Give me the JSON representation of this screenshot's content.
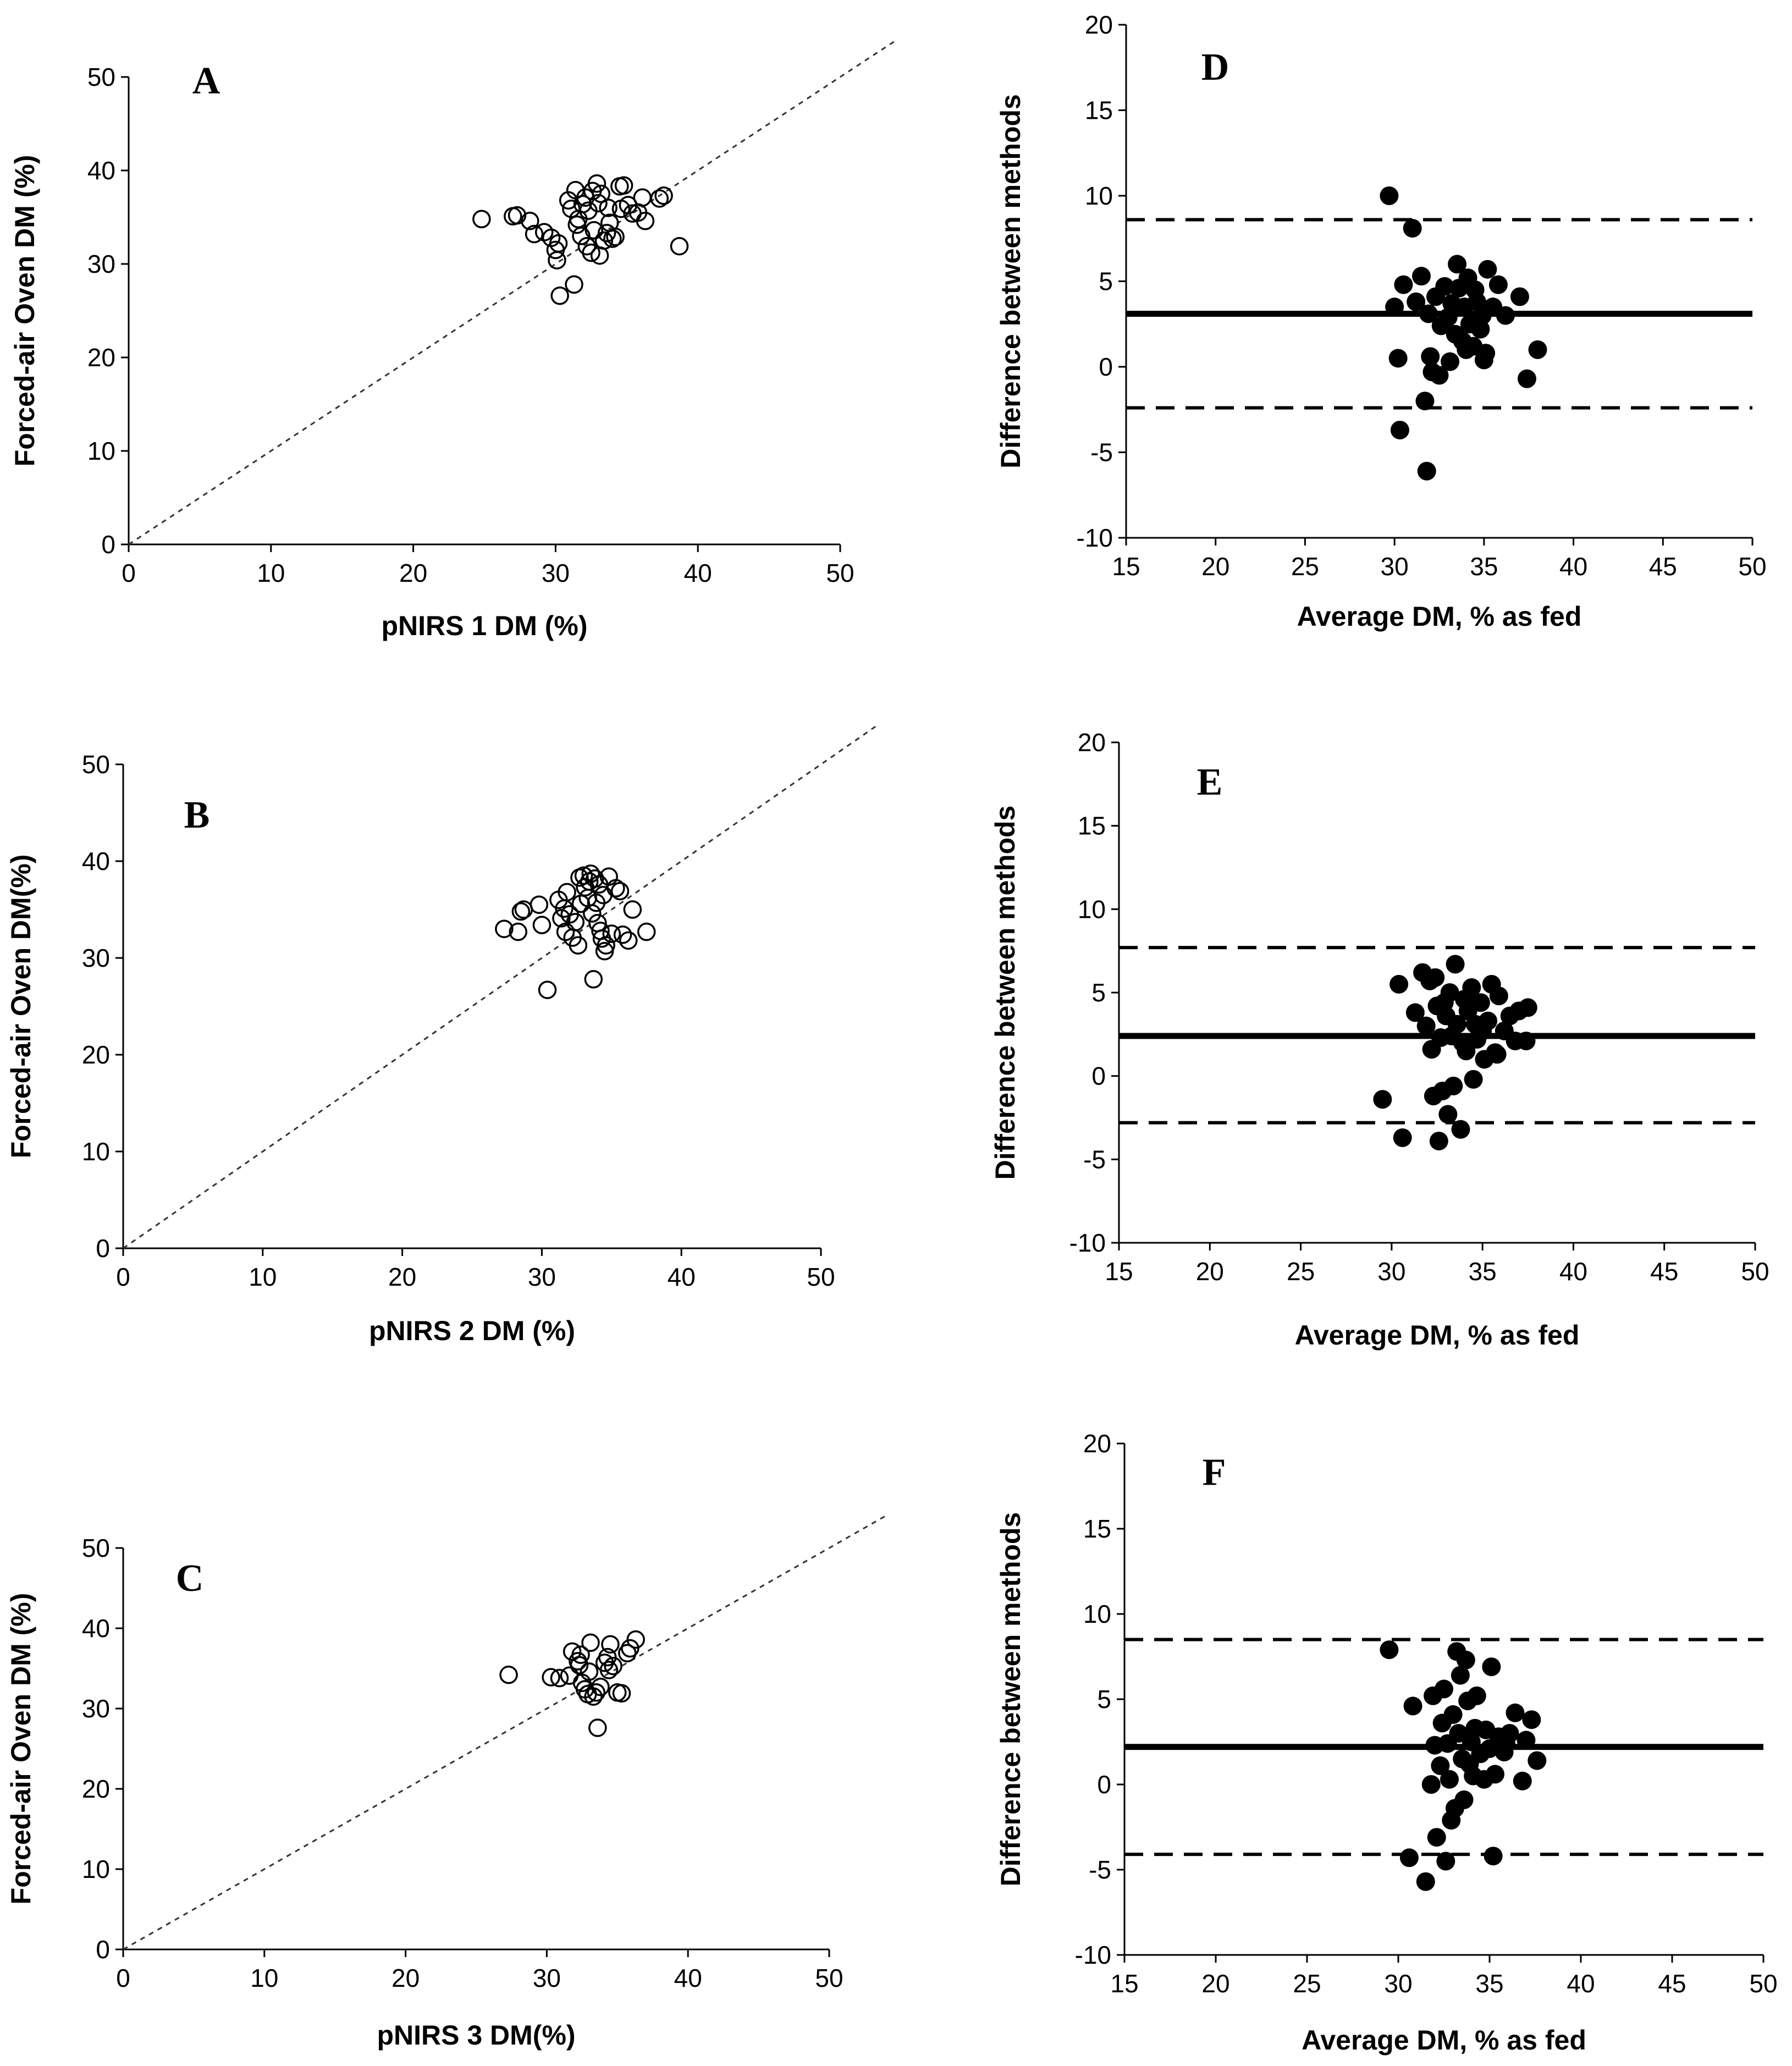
{
  "chart_data": [
    {
      "panel": "A",
      "type": "scatter",
      "xlabel": "pNIRS 1 DM (%)",
      "ylabel": "Forced-air Oven DM (%)",
      "xlim": [
        0,
        50
      ],
      "ylim": [
        0,
        50
      ],
      "xticks": [
        "0",
        "10",
        "20",
        "30",
        "40",
        "50"
      ],
      "yticks": [
        "0",
        "10",
        "20",
        "30",
        "40",
        "50"
      ],
      "reference_line": "y = x",
      "points": [
        [
          24.8,
          34.8
        ],
        [
          27,
          35.1
        ],
        [
          27.3,
          35.2
        ],
        [
          28.2,
          34.6
        ],
        [
          28.5,
          33.2
        ],
        [
          29.2,
          33.4
        ],
        [
          29.7,
          32.8
        ],
        [
          30.0,
          31.5
        ],
        [
          30.2,
          32.2
        ],
        [
          30.1,
          30.4
        ],
        [
          30.3,
          26.6
        ],
        [
          30.9,
          36.8
        ],
        [
          31.1,
          35.9
        ],
        [
          31.4,
          37.9
        ],
        [
          31.6,
          34.8
        ],
        [
          31.8,
          33.0
        ],
        [
          31.9,
          36.4
        ],
        [
          32.1,
          37.1
        ],
        [
          32.3,
          35.7
        ],
        [
          32.2,
          31.9
        ],
        [
          32.5,
          31.2
        ],
        [
          32.7,
          33.6
        ],
        [
          32.9,
          38.6
        ],
        [
          33.0,
          36.5
        ],
        [
          33.1,
          30.9
        ],
        [
          33.2,
          37.5
        ],
        [
          33.4,
          32.5
        ],
        [
          33.6,
          33.3
        ],
        [
          33.8,
          34.4
        ],
        [
          34.0,
          32.7
        ],
        [
          34.2,
          32.9
        ],
        [
          34.5,
          38.3
        ],
        [
          34.8,
          38.4
        ],
        [
          35.1,
          36.3
        ],
        [
          35.4,
          35.4
        ],
        [
          35.8,
          35.5
        ],
        [
          36.1,
          37.1
        ],
        [
          36.3,
          34.6
        ],
        [
          37.3,
          37.0
        ],
        [
          37.6,
          37.3
        ],
        [
          38.7,
          31.9
        ],
        [
          31.3,
          27.8
        ],
        [
          32.6,
          37.8
        ],
        [
          33.7,
          36.0
        ],
        [
          34.6,
          35.9
        ],
        [
          31.5,
          34.2
        ]
      ]
    },
    {
      "panel": "B",
      "type": "scatter",
      "xlabel": "pNIRS 2 DM (%)",
      "ylabel": "Forced-air Oven DM(%)",
      "xlim": [
        0,
        50
      ],
      "ylim": [
        0,
        50
      ],
      "xticks": [
        "0",
        "10",
        "20",
        "30",
        "40",
        "50"
      ],
      "yticks": [
        "0",
        "10",
        "20",
        "30",
        "40",
        "50"
      ],
      "reference_line": "y = x",
      "points": [
        [
          27.3,
          33.0
        ],
        [
          28.3,
          32.7
        ],
        [
          28.5,
          34.8
        ],
        [
          28.7,
          35.0
        ],
        [
          29.8,
          35.5
        ],
        [
          30.0,
          33.4
        ],
        [
          30.4,
          26.7
        ],
        [
          31.2,
          36.0
        ],
        [
          31.4,
          34.1
        ],
        [
          31.6,
          35.1
        ],
        [
          31.7,
          32.7
        ],
        [
          32.0,
          34.5
        ],
        [
          32.2,
          32.1
        ],
        [
          32.4,
          33.7
        ],
        [
          32.6,
          31.3
        ],
        [
          32.8,
          35.6
        ],
        [
          33.0,
          38.5
        ],
        [
          33.1,
          37.3
        ],
        [
          33.3,
          36.2
        ],
        [
          33.5,
          38.7
        ],
        [
          33.6,
          34.6
        ],
        [
          33.7,
          27.8
        ],
        [
          33.8,
          38.2
        ],
        [
          34.0,
          33.6
        ],
        [
          34.1,
          37.6
        ],
        [
          34.2,
          32.8
        ],
        [
          34.4,
          36.5
        ],
        [
          34.5,
          30.7
        ],
        [
          34.6,
          31.3
        ],
        [
          34.8,
          38.4
        ],
        [
          35.0,
          32.5
        ],
        [
          35.3,
          37.2
        ],
        [
          35.6,
          36.9
        ],
        [
          35.8,
          32.4
        ],
        [
          36.2,
          31.8
        ],
        [
          36.5,
          35.0
        ],
        [
          37.5,
          32.7
        ],
        [
          32.7,
          38.3
        ],
        [
          33.4,
          37.9
        ],
        [
          34.3,
          32.0
        ],
        [
          31.8,
          36.8
        ],
        [
          33.9,
          35.7
        ]
      ]
    },
    {
      "panel": "C",
      "type": "scatter",
      "xlabel": "pNIRS 3 DM(%)",
      "ylabel": "Forced-air Oven DM (%)",
      "xlim": [
        0,
        50
      ],
      "ylim": [
        0,
        50
      ],
      "xticks": [
        "0",
        "10",
        "20",
        "30",
        "40",
        "50"
      ],
      "yticks": [
        "0",
        "10",
        "20",
        "30",
        "40",
        "50"
      ],
      "reference_line": "y = x",
      "points": [
        [
          27.3,
          34.2
        ],
        [
          30.3,
          33.9
        ],
        [
          30.9,
          33.8
        ],
        [
          31.6,
          34.1
        ],
        [
          31.8,
          37.1
        ],
        [
          32.2,
          35.9
        ],
        [
          32.3,
          35.4
        ],
        [
          32.4,
          36.7
        ],
        [
          32.7,
          32.4
        ],
        [
          32.9,
          31.8
        ],
        [
          33.0,
          34.6
        ],
        [
          33.1,
          38.2
        ],
        [
          33.3,
          31.5
        ],
        [
          33.5,
          32.0
        ],
        [
          33.6,
          27.6
        ],
        [
          33.8,
          32.7
        ],
        [
          34.1,
          35.7
        ],
        [
          34.3,
          36.4
        ],
        [
          34.5,
          38.0
        ],
        [
          34.7,
          35.3
        ],
        [
          35.0,
          32.0
        ],
        [
          35.3,
          31.9
        ],
        [
          35.7,
          36.9
        ],
        [
          35.9,
          37.5
        ],
        [
          36.3,
          38.6
        ],
        [
          34.4,
          34.8
        ],
        [
          32.5,
          33.2
        ]
      ]
    },
    {
      "panel": "D",
      "type": "scatter",
      "xlabel": "Average DM, % as fed",
      "ylabel": "Difference between methods",
      "xlim": [
        15,
        50
      ],
      "ylim": [
        -10,
        20
      ],
      "xticks": [
        "15",
        "20",
        "25",
        "30",
        "35",
        "40",
        "45",
        "50"
      ],
      "yticks": [
        "-10",
        "-5",
        "0",
        "5",
        "10",
        "15",
        "20"
      ],
      "mean_difference": 3.1,
      "limits_of_agreement": [
        -2.4,
        8.6
      ],
      "points": [
        [
          29.7,
          10.0
        ],
        [
          30.0,
          3.5
        ],
        [
          30.2,
          0.5
        ],
        [
          30.3,
          -3.7
        ],
        [
          30.5,
          4.8
        ],
        [
          31.0,
          8.1
        ],
        [
          31.2,
          3.8
        ],
        [
          31.5,
          5.3
        ],
        [
          31.7,
          -2.0
        ],
        [
          31.8,
          -6.1
        ],
        [
          31.9,
          3.1
        ],
        [
          32.0,
          0.6
        ],
        [
          32.1,
          -0.3
        ],
        [
          32.3,
          4.1
        ],
        [
          32.5,
          -0.5
        ],
        [
          32.6,
          2.4
        ],
        [
          32.8,
          4.7
        ],
        [
          33.0,
          2.9
        ],
        [
          33.1,
          0.3
        ],
        [
          33.2,
          3.7
        ],
        [
          33.4,
          1.9
        ],
        [
          33.5,
          6.0
        ],
        [
          33.6,
          4.6
        ],
        [
          33.8,
          1.5
        ],
        [
          33.9,
          3.5
        ],
        [
          34.1,
          5.2
        ],
        [
          34.2,
          2.5
        ],
        [
          34.4,
          1.2
        ],
        [
          34.5,
          4.5
        ],
        [
          34.6,
          3.8
        ],
        [
          34.8,
          2.2
        ],
        [
          35.0,
          0.4
        ],
        [
          35.2,
          5.7
        ],
        [
          35.5,
          3.5
        ],
        [
          35.8,
          4.8
        ],
        [
          36.2,
          3.0
        ],
        [
          37.0,
          4.1
        ],
        [
          37.4,
          -0.7
        ],
        [
          38.0,
          1.0
        ],
        [
          35.1,
          0.8
        ],
        [
          34.0,
          1.0
        ],
        [
          34.9,
          3.0
        ]
      ]
    },
    {
      "panel": "E",
      "type": "scatter",
      "xlabel": "Average DM, % as fed",
      "ylabel": "Difference between methods",
      "xlim": [
        15,
        50
      ],
      "ylim": [
        -10,
        20
      ],
      "xticks": [
        "15",
        "20",
        "25",
        "30",
        "35",
        "40",
        "45",
        "50"
      ],
      "yticks": [
        "-10",
        "-5",
        "0",
        "5",
        "10",
        "15",
        "20"
      ],
      "mean_difference": 2.4,
      "limits_of_agreement": [
        -2.8,
        7.7
      ],
      "points": [
        [
          29.5,
          -1.4
        ],
        [
          30.4,
          5.5
        ],
        [
          30.6,
          -3.7
        ],
        [
          31.3,
          3.8
        ],
        [
          31.7,
          6.2
        ],
        [
          31.9,
          3.0
        ],
        [
          32.1,
          5.7
        ],
        [
          32.2,
          1.6
        ],
        [
          32.3,
          -1.2
        ],
        [
          32.5,
          4.2
        ],
        [
          32.6,
          -3.9
        ],
        [
          32.7,
          2.3
        ],
        [
          32.8,
          -0.9
        ],
        [
          33.0,
          3.6
        ],
        [
          33.1,
          -2.3
        ],
        [
          33.2,
          5.0
        ],
        [
          33.3,
          2.4
        ],
        [
          33.4,
          -0.6
        ],
        [
          33.5,
          6.7
        ],
        [
          33.6,
          3.1
        ],
        [
          33.8,
          -3.2
        ],
        [
          34.0,
          4.6
        ],
        [
          34.1,
          1.5
        ],
        [
          34.2,
          3.9
        ],
        [
          34.4,
          5.3
        ],
        [
          34.5,
          -0.2
        ],
        [
          34.7,
          2.2
        ],
        [
          34.9,
          4.4
        ],
        [
          35.1,
          1.0
        ],
        [
          35.3,
          3.3
        ],
        [
          35.5,
          5.5
        ],
        [
          35.7,
          1.4
        ],
        [
          35.9,
          4.8
        ],
        [
          36.2,
          2.7
        ],
        [
          36.5,
          3.6
        ],
        [
          36.8,
          2.1
        ],
        [
          37.0,
          3.9
        ],
        [
          37.4,
          2.1
        ],
        [
          37.5,
          4.1
        ],
        [
          33.9,
          2.0
        ],
        [
          32.9,
          4.4
        ],
        [
          35.0,
          2.7
        ],
        [
          34.6,
          3.1
        ],
        [
          32.4,
          5.9
        ],
        [
          35.8,
          1.3
        ]
      ]
    },
    {
      "panel": "F",
      "type": "scatter",
      "xlabel": "Average DM, % as fed",
      "ylabel": "Difference between methods",
      "xlim": [
        15,
        50
      ],
      "ylim": [
        -10,
        20
      ],
      "xticks": [
        "15",
        "20",
        "25",
        "30",
        "35",
        "40",
        "45",
        "50"
      ],
      "yticks": [
        "-10",
        "-5",
        "0",
        "5",
        "10",
        "15",
        "20"
      ],
      "mean_difference": 2.2,
      "limits_of_agreement": [
        -4.1,
        8.5
      ],
      "points": [
        [
          29.5,
          7.9
        ],
        [
          30.6,
          -4.3
        ],
        [
          30.8,
          4.6
        ],
        [
          31.5,
          -5.7
        ],
        [
          31.8,
          0.0
        ],
        [
          31.9,
          5.2
        ],
        [
          32.0,
          2.3
        ],
        [
          32.1,
          -3.1
        ],
        [
          32.3,
          1.1
        ],
        [
          32.4,
          3.6
        ],
        [
          32.5,
          5.6
        ],
        [
          32.6,
          -4.5
        ],
        [
          32.7,
          2.4
        ],
        [
          32.8,
          0.3
        ],
        [
          32.9,
          -2.1
        ],
        [
          33.0,
          4.1
        ],
        [
          33.1,
          -1.4
        ],
        [
          33.2,
          7.8
        ],
        [
          33.3,
          3.0
        ],
        [
          33.4,
          6.4
        ],
        [
          33.5,
          1.5
        ],
        [
          33.6,
          -0.9
        ],
        [
          33.7,
          7.3
        ],
        [
          33.8,
          4.9
        ],
        [
          34.0,
          2.5
        ],
        [
          34.1,
          0.5
        ],
        [
          34.3,
          5.2
        ],
        [
          34.5,
          1.8
        ],
        [
          34.7,
          0.3
        ],
        [
          34.8,
          3.2
        ],
        [
          35.0,
          2.1
        ],
        [
          35.1,
          6.9
        ],
        [
          35.2,
          -4.2
        ],
        [
          35.3,
          0.6
        ],
        [
          35.5,
          2.8
        ],
        [
          35.8,
          1.9
        ],
        [
          36.1,
          3.0
        ],
        [
          36.4,
          4.2
        ],
        [
          36.8,
          0.2
        ],
        [
          37.0,
          2.6
        ],
        [
          37.3,
          3.8
        ],
        [
          37.6,
          1.4
        ],
        [
          34.2,
          3.3
        ],
        [
          33.9,
          1.2
        ],
        [
          35.9,
          2.4
        ]
      ]
    }
  ]
}
